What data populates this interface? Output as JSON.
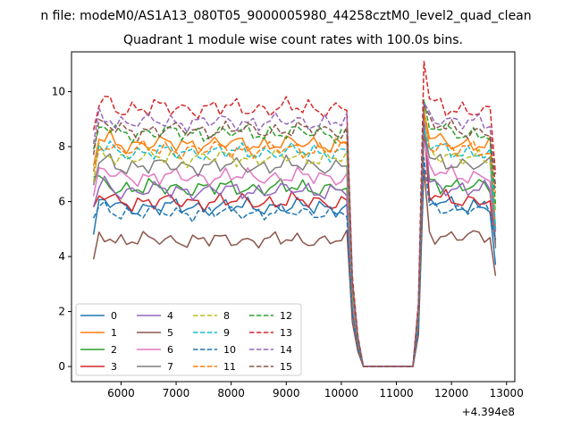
{
  "suptitle": "n file: modeM0/AS1A13_080T05_9000005980_44258cztM0_level2_quad_clean",
  "chart_data": {
    "type": "line",
    "title": "Quadrant 1 module wise count rates with 100.0s bins.",
    "xlabel": "",
    "ylabel": "",
    "x_offset_label": "+4.394e8",
    "xlim": [
      5100,
      13150
    ],
    "ylim": [
      -0.55,
      11.45
    ],
    "xticks": [
      6000,
      7000,
      8000,
      9000,
      10000,
      11000,
      12000,
      13000
    ],
    "yticks": [
      0,
      2,
      4,
      6,
      8,
      10
    ],
    "grid": false,
    "legend": {
      "placement": "lower-left",
      "columns": 4
    },
    "series": [
      {
        "name": "0",
        "color": "#1f77b4",
        "dash": "solid",
        "baseline": 5.8,
        "spread": 0.35,
        "phase": 0.3,
        "start": 4.8,
        "end": 3.7,
        "post_first": 9.0,
        "trend": -0.2
      },
      {
        "name": "1",
        "color": "#ff7f0e",
        "dash": "solid",
        "baseline": 8.1,
        "spread": 0.35,
        "phase": 1.1,
        "start": 7.3,
        "end": 5.0,
        "post_first": 9.3,
        "trend": -0.3
      },
      {
        "name": "2",
        "color": "#2ca02c",
        "dash": "solid",
        "baseline": 6.5,
        "spread": 0.35,
        "phase": 2.0,
        "start": 6.9,
        "end": 4.6,
        "post_first": 8.5,
        "trend": -0.2
      },
      {
        "name": "3",
        "color": "#d62728",
        "dash": "solid",
        "baseline": 6.0,
        "spread": 0.35,
        "phase": 0.7,
        "start": 5.8,
        "end": 4.4,
        "post_first": 8.9,
        "trend": -0.2
      },
      {
        "name": "4",
        "color": "#9467bd",
        "dash": "solid",
        "baseline": 6.4,
        "spread": 0.35,
        "phase": 1.6,
        "start": 5.8,
        "end": 4.9,
        "post_first": 9.1,
        "trend": -0.2
      },
      {
        "name": "5",
        "color": "#8c564b",
        "dash": "solid",
        "baseline": 4.6,
        "spread": 0.32,
        "phase": 2.5,
        "start": 3.9,
        "end": 3.3,
        "post_first": 7.2,
        "trend": -0.1
      },
      {
        "name": "6",
        "color": "#e377c2",
        "dash": "solid",
        "baseline": 6.9,
        "spread": 0.35,
        "phase": 0.2,
        "start": 6.2,
        "end": 4.5,
        "post_first": 8.2,
        "trend": -0.2
      },
      {
        "name": "7",
        "color": "#7f7f7f",
        "dash": "solid",
        "baseline": 7.3,
        "spread": 0.35,
        "phase": 1.3,
        "start": 6.6,
        "end": 4.3,
        "post_first": 8.6,
        "trend": -0.2
      },
      {
        "name": "8",
        "color": "#bcbd22",
        "dash": "dashed",
        "baseline": 7.6,
        "spread": 0.35,
        "phase": 2.2,
        "start": 6.7,
        "end": 5.7,
        "post_first": 9.2,
        "trend": -0.3
      },
      {
        "name": "9",
        "color": "#17becf",
        "dash": "dashed",
        "baseline": 7.8,
        "spread": 0.35,
        "phase": 0.9,
        "start": 7.1,
        "end": 5.0,
        "post_first": 8.7,
        "trend": -0.3
      },
      {
        "name": "10",
        "color": "#1f77b4",
        "dash": "dashed",
        "baseline": 5.6,
        "spread": 0.3,
        "phase": 1.8,
        "start": 5.4,
        "end": 4.6,
        "post_first": 7.6,
        "trend": -0.1
      },
      {
        "name": "11",
        "color": "#ff7f0e",
        "dash": "dashed",
        "baseline": 7.9,
        "spread": 0.35,
        "phase": 2.8,
        "start": 7.1,
        "end": 6.3,
        "post_first": 9.4,
        "trend": -0.3
      },
      {
        "name": "12",
        "color": "#2ca02c",
        "dash": "dashed",
        "baseline": 8.5,
        "spread": 0.35,
        "phase": 0.5,
        "start": 7.9,
        "end": 5.9,
        "post_first": 9.7,
        "trend": -0.3
      },
      {
        "name": "13",
        "color": "#d62728",
        "dash": "dashed",
        "baseline": 9.4,
        "spread": 0.4,
        "phase": 1.4,
        "start": 8.6,
        "end": 7.0,
        "post_first": 11.1,
        "trend": -0.4
      },
      {
        "name": "14",
        "color": "#9467bd",
        "dash": "dashed",
        "baseline": 8.9,
        "spread": 0.35,
        "phase": 2.3,
        "start": 8.1,
        "end": 6.5,
        "post_first": 9.6,
        "trend": -0.3
      },
      {
        "name": "15",
        "color": "#8c564b",
        "dash": "dashed",
        "baseline": 8.6,
        "spread": 0.35,
        "phase": 0.1,
        "start": 7.7,
        "end": 6.6,
        "post_first": 9.5,
        "trend": -0.3
      }
    ]
  }
}
